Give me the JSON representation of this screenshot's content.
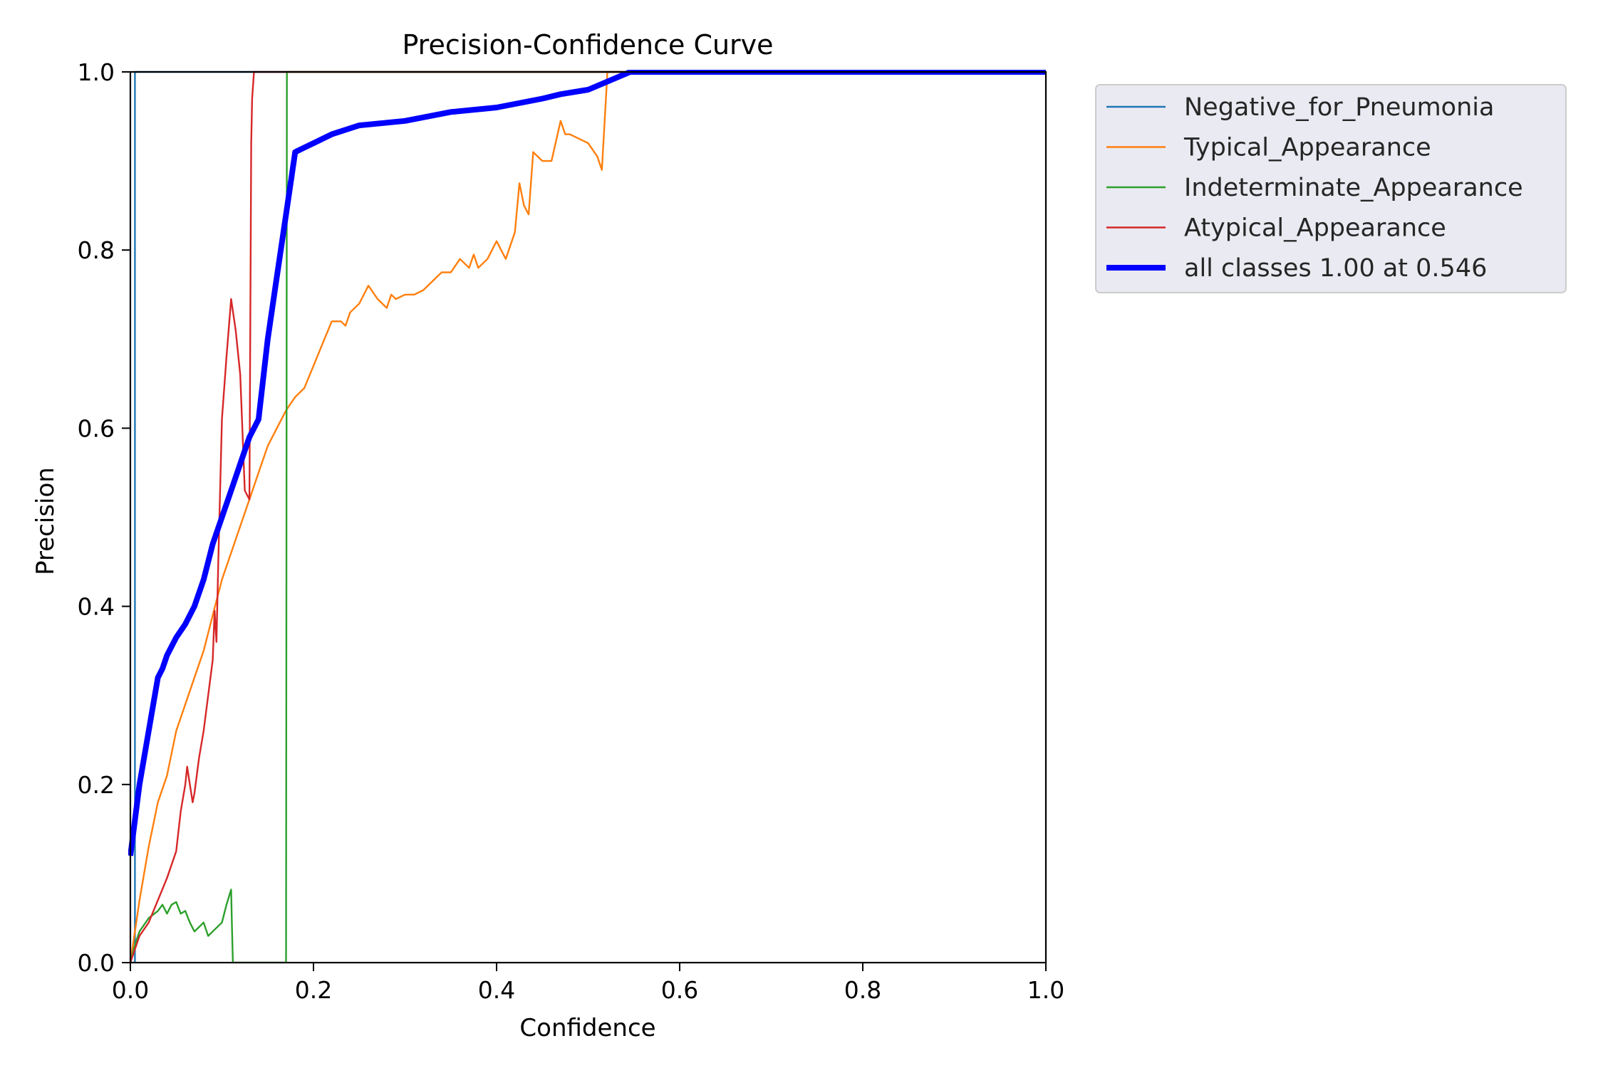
{
  "chart_data": {
    "type": "line",
    "title": "Precision-Confidence Curve",
    "xlabel": "Confidence",
    "ylabel": "Precision",
    "xlim": [
      0.0,
      1.0
    ],
    "ylim": [
      0.0,
      1.0
    ],
    "xticks": [
      "0.0",
      "0.2",
      "0.4",
      "0.6",
      "0.8",
      "1.0"
    ],
    "yticks": [
      "0.0",
      "0.2",
      "0.4",
      "0.6",
      "0.8",
      "1.0"
    ],
    "grid": false,
    "legend_position": "outside-right",
    "series": [
      {
        "name": "Negative_for_Pneumonia",
        "color": "#1f77b4",
        "width": "thin",
        "x": [
          0.0,
          0.004,
          0.005,
          0.005,
          1.0
        ],
        "y": [
          0.0,
          0.0,
          0.0,
          1.0,
          1.0
        ]
      },
      {
        "name": "Typical_Appearance",
        "color": "#ff7f0e",
        "width": "thin",
        "x": [
          0.0,
          0.01,
          0.02,
          0.03,
          0.04,
          0.05,
          0.06,
          0.07,
          0.08,
          0.09,
          0.1,
          0.11,
          0.12,
          0.13,
          0.14,
          0.15,
          0.16,
          0.17,
          0.18,
          0.19,
          0.2,
          0.21,
          0.22,
          0.23,
          0.235,
          0.24,
          0.25,
          0.26,
          0.27,
          0.28,
          0.285,
          0.29,
          0.3,
          0.31,
          0.32,
          0.33,
          0.34,
          0.35,
          0.36,
          0.37,
          0.375,
          0.38,
          0.39,
          0.4,
          0.405,
          0.41,
          0.42,
          0.425,
          0.43,
          0.435,
          0.44,
          0.45,
          0.46,
          0.47,
          0.475,
          0.48,
          0.49,
          0.5,
          0.51,
          0.515,
          0.52,
          0.521,
          0.53,
          0.55,
          1.0
        ],
        "y": [
          0.0,
          0.07,
          0.13,
          0.18,
          0.21,
          0.26,
          0.29,
          0.32,
          0.35,
          0.39,
          0.43,
          0.46,
          0.49,
          0.52,
          0.55,
          0.58,
          0.6,
          0.62,
          0.635,
          0.645,
          0.67,
          0.695,
          0.72,
          0.72,
          0.715,
          0.73,
          0.74,
          0.76,
          0.745,
          0.735,
          0.75,
          0.745,
          0.75,
          0.75,
          0.755,
          0.765,
          0.775,
          0.775,
          0.79,
          0.78,
          0.795,
          0.78,
          0.79,
          0.81,
          0.8,
          0.79,
          0.82,
          0.875,
          0.85,
          0.84,
          0.91,
          0.9,
          0.9,
          0.945,
          0.93,
          0.93,
          0.925,
          0.92,
          0.905,
          0.89,
          0.98,
          1.0,
          1.0,
          1.0,
          1.0
        ]
      },
      {
        "name": "Indeterminate_Appearance",
        "color": "#2ca02c",
        "width": "thin",
        "x": [
          0.0,
          0.005,
          0.01,
          0.02,
          0.03,
          0.035,
          0.04,
          0.045,
          0.05,
          0.055,
          0.06,
          0.065,
          0.07,
          0.075,
          0.08,
          0.085,
          0.09,
          0.1,
          0.105,
          0.11,
          0.111,
          0.112,
          0.17,
          0.171,
          1.0
        ],
        "y": [
          0.0,
          0.02,
          0.035,
          0.05,
          0.058,
          0.065,
          0.055,
          0.065,
          0.068,
          0.055,
          0.058,
          0.045,
          0.035,
          0.04,
          0.045,
          0.03,
          0.035,
          0.045,
          0.065,
          0.082,
          0.04,
          0.0,
          0.0,
          1.0,
          1.0
        ]
      },
      {
        "name": "Atypical_Appearance",
        "color": "#d62728",
        "width": "thin",
        "x": [
          0.0,
          0.01,
          0.02,
          0.03,
          0.04,
          0.05,
          0.055,
          0.06,
          0.062,
          0.065,
          0.068,
          0.07,
          0.075,
          0.08,
          0.085,
          0.09,
          0.092,
          0.094,
          0.096,
          0.1,
          0.105,
          0.11,
          0.115,
          0.12,
          0.125,
          0.13,
          0.132,
          0.133,
          0.135,
          1.0
        ],
        "y": [
          0.0,
          0.03,
          0.045,
          0.07,
          0.095,
          0.125,
          0.17,
          0.2,
          0.22,
          0.2,
          0.18,
          0.19,
          0.23,
          0.26,
          0.3,
          0.34,
          0.395,
          0.36,
          0.45,
          0.61,
          0.68,
          0.745,
          0.71,
          0.66,
          0.53,
          0.52,
          0.92,
          0.97,
          1.0,
          1.0
        ]
      },
      {
        "name": "all classes 1.00 at 0.546",
        "color": "#0000ff",
        "width": "thick",
        "x": [
          0.0,
          0.01,
          0.02,
          0.03,
          0.035,
          0.04,
          0.05,
          0.06,
          0.07,
          0.08,
          0.09,
          0.1,
          0.11,
          0.12,
          0.13,
          0.14,
          0.15,
          0.16,
          0.17,
          0.18,
          0.19,
          0.2,
          0.22,
          0.25,
          0.3,
          0.35,
          0.4,
          0.45,
          0.47,
          0.5,
          0.546,
          1.0
        ],
        "y": [
          0.12,
          0.2,
          0.26,
          0.32,
          0.33,
          0.345,
          0.365,
          0.38,
          0.4,
          0.43,
          0.47,
          0.5,
          0.53,
          0.56,
          0.59,
          0.61,
          0.7,
          0.77,
          0.84,
          0.91,
          0.915,
          0.92,
          0.93,
          0.94,
          0.945,
          0.955,
          0.96,
          0.97,
          0.975,
          0.98,
          1.0,
          1.0
        ]
      }
    ]
  }
}
